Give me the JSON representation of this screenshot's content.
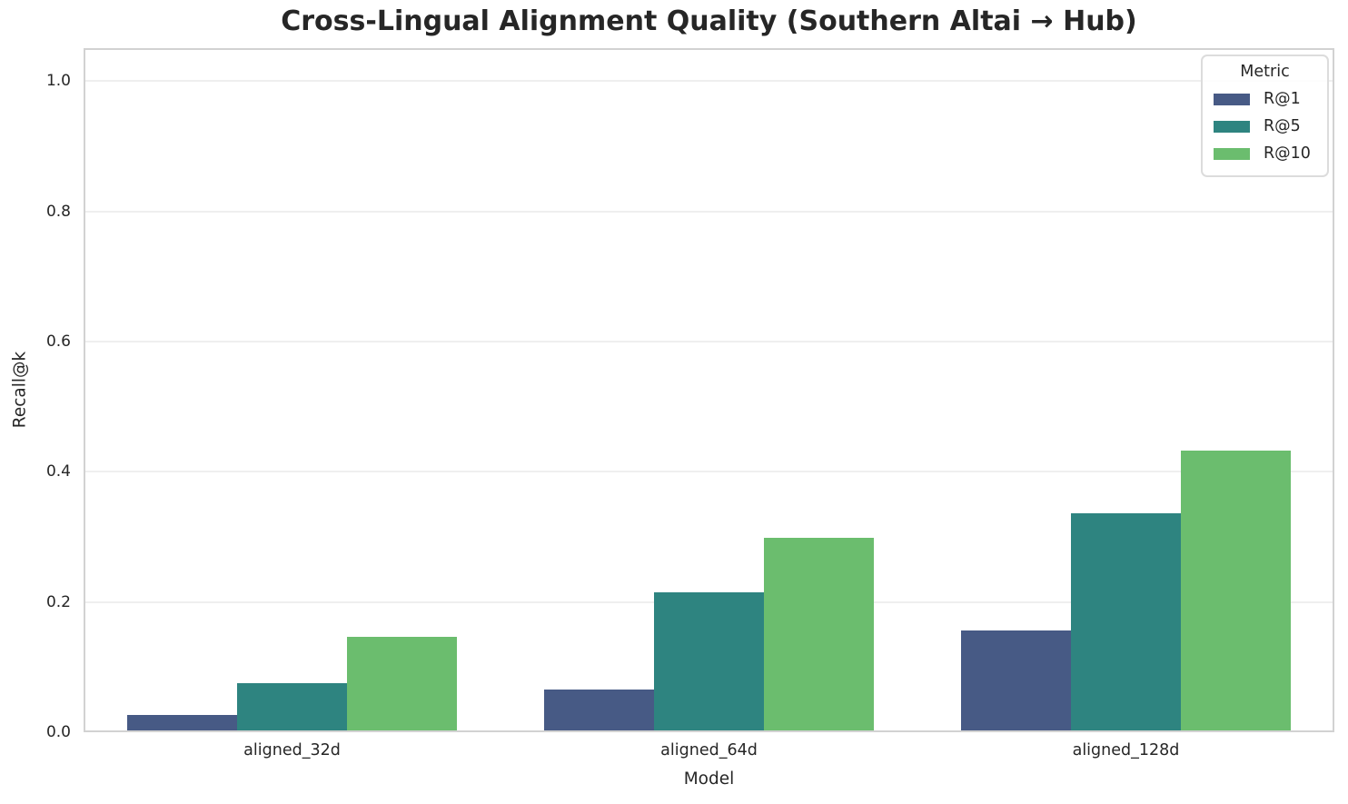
{
  "title": "Cross-Lingual Alignment Quality (Southern Altai → Hub)",
  "chart_data": {
    "type": "bar",
    "title": "Cross-Lingual Alignment Quality (Southern Altai → Hub)",
    "xlabel": "Model",
    "ylabel": "Recall@k",
    "categories": [
      "aligned_32d",
      "aligned_64d",
      "aligned_128d"
    ],
    "series": [
      {
        "name": "R@1",
        "color": "#475a85",
        "values": [
          0.026,
          0.065,
          0.156
        ]
      },
      {
        "name": "R@5",
        "color": "#2e8480",
        "values": [
          0.075,
          0.215,
          0.336
        ]
      },
      {
        "name": "R@10",
        "color": "#6bbd6e",
        "values": [
          0.146,
          0.298,
          0.433
        ]
      }
    ],
    "yticks": [
      0.0,
      0.2,
      0.4,
      0.6,
      0.8,
      1.0
    ],
    "ylim": [
      0,
      1.0505
    ],
    "grid": "horizontal",
    "legend": {
      "title": "Metric",
      "position": "upper right"
    }
  }
}
